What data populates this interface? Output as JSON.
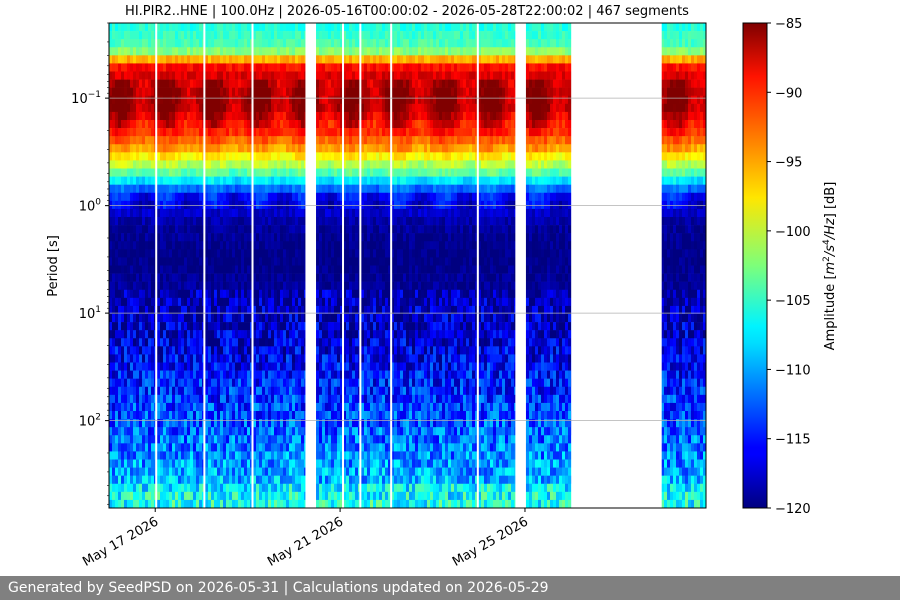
{
  "footer": "Generated by SeedPSD on 2026-05-31 | Calculations updated on 2026-05-29",
  "chart_data": {
    "type": "heatmap",
    "title": "HI.PIR2..HNE | 100.0Hz | 2026-05-16T00:00:02 - 2026-05-28T22:00:02 | 467 segments",
    "ylabel": "Period [s]",
    "y_scale": "log",
    "y_reversed": true,
    "ylim": [
      0.02,
      650
    ],
    "y_ticks": [
      {
        "value": 0.1,
        "base": "10",
        "exp": "−1"
      },
      {
        "value": 1,
        "base": "10",
        "exp": "0"
      },
      {
        "value": 10,
        "base": "10",
        "exp": "1"
      },
      {
        "value": 100,
        "base": "10",
        "exp": "2"
      }
    ],
    "xlim": [
      "2026-05-16T00:00:02",
      "2026-05-28T22:00:02"
    ],
    "x_ticks": [
      {
        "value": "2026-05-17",
        "label": "May 17 2026"
      },
      {
        "value": "2026-05-21",
        "label": "May 21 2026"
      },
      {
        "value": "2026-05-25",
        "label": "May 25 2026"
      }
    ],
    "grid_y": true,
    "gaps": [
      [
        "2026-05-20T06:00:00",
        "2026-05-20T11:30:00"
      ],
      [
        "2026-05-24T19:00:00",
        "2026-05-25T00:30:00"
      ],
      [
        "2026-05-26T00:00:00",
        "2026-05-27T23:00:00"
      ]
    ],
    "thin_gaps": [
      "2026-05-17T00:00:00",
      "2026-05-18T01:00:00",
      "2026-05-19T02:00:00",
      "2026-05-21T01:00:00",
      "2026-05-21T10:00:00",
      "2026-05-22T02:00:00",
      "2026-05-23T23:00:00"
    ],
    "colorbar": {
      "label": "Amplitude [m²/s⁴/Hz] [dB]",
      "min": -120,
      "max": -85,
      "ticks": [
        -85,
        -90,
        -95,
        -100,
        -105,
        -110,
        -115,
        -120
      ],
      "colormap": "jet"
    },
    "typical_profile": [
      {
        "period": 0.02,
        "db": -106
      },
      {
        "period": 0.035,
        "db": -104
      },
      {
        "period": 0.05,
        "db": -90
      },
      {
        "period": 0.08,
        "db": -86
      },
      {
        "period": 0.12,
        "db": -86
      },
      {
        "period": 0.2,
        "db": -90
      },
      {
        "period": 0.3,
        "db": -95
      },
      {
        "period": 0.5,
        "db": -104
      },
      {
        "period": 0.8,
        "db": -115
      },
      {
        "period": 1.5,
        "db": -119
      },
      {
        "period": 3,
        "db": -120
      },
      {
        "period": 6,
        "db": -119
      },
      {
        "period": 20,
        "db": -117
      },
      {
        "period": 60,
        "db": -114
      },
      {
        "period": 150,
        "db": -112
      },
      {
        "period": 300,
        "db": -110
      },
      {
        "period": 650,
        "db": -108
      }
    ]
  }
}
